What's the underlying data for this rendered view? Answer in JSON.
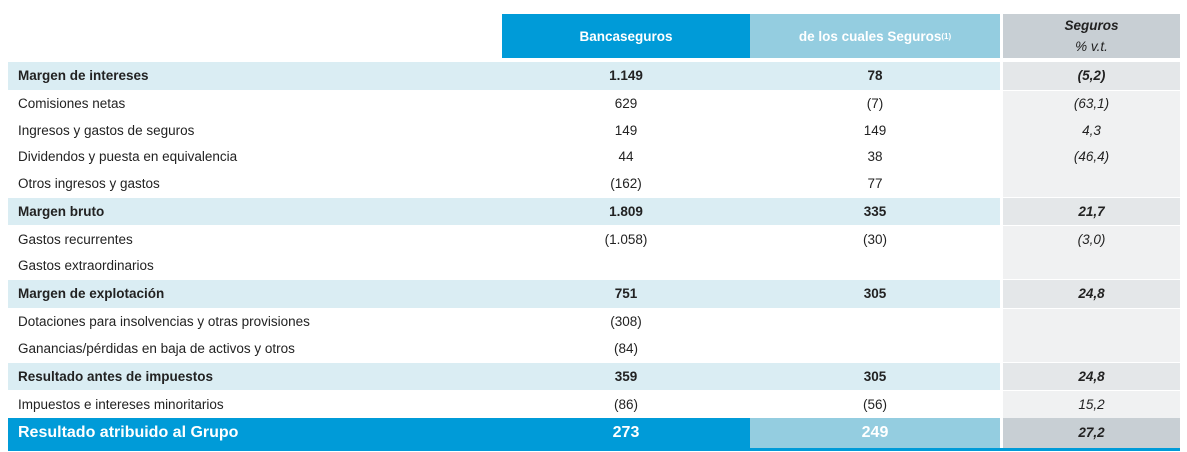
{
  "header": {
    "col1": "Bancaseguros",
    "col2": "de los cuales Seguros",
    "col2_note": "(1)",
    "col3_title": "Seguros",
    "col3_sub": "% v.t."
  },
  "rows": [
    {
      "label": "Margen de intereses",
      "v1": "1.149",
      "v2": "78",
      "v3": "(5,2)",
      "style": "bold"
    },
    {
      "label": "Comisiones netas",
      "v1": "629",
      "v2": "(7)",
      "v3": "(63,1)",
      "style": "normal"
    },
    {
      "label": "Ingresos y gastos de seguros",
      "v1": "149",
      "v2": "149",
      "v3": "4,3",
      "style": "normal"
    },
    {
      "label": "Dividendos y puesta en equivalencia",
      "v1": "44",
      "v2": "38",
      "v3": "(46,4)",
      "style": "normal"
    },
    {
      "label": "Otros ingresos y gastos",
      "v1": "(162)",
      "v2": "77",
      "v3": "",
      "style": "normal"
    },
    {
      "label": "Margen bruto",
      "v1": "1.809",
      "v2": "335",
      "v3": "21,7",
      "style": "bold"
    },
    {
      "label": "Gastos recurrentes",
      "v1": "(1.058)",
      "v2": "(30)",
      "v3": "(3,0)",
      "style": "normal"
    },
    {
      "label": "Gastos extraordinarios",
      "v1": "",
      "v2": "",
      "v3": "",
      "style": "normal"
    },
    {
      "label": "Margen de explotación",
      "v1": "751",
      "v2": "305",
      "v3": "24,8",
      "style": "bold"
    },
    {
      "label": "Dotaciones para insolvencias y otras provisiones",
      "v1": "(308)",
      "v2": "",
      "v3": "",
      "style": "normal"
    },
    {
      "label": "Ganancias/pérdidas en baja de activos y otros",
      "v1": "(84)",
      "v2": "",
      "v3": "",
      "style": "normal"
    },
    {
      "label": "Resultado antes de impuestos",
      "v1": "359",
      "v2": "305",
      "v3": "24,8",
      "style": "bold"
    },
    {
      "label": "Impuestos e intereses minoritarios",
      "v1": "(86)",
      "v2": "(56)",
      "v3": "15,2",
      "style": "normal"
    },
    {
      "label": "Resultado atribuido al Grupo",
      "v1": "273",
      "v2": "249",
      "v3": "27,2",
      "style": "final"
    }
  ],
  "colors": {
    "blue": "#009bd8",
    "light_blue": "#94cde0",
    "row_highlight": "#daedf3",
    "gray": "#c8cfd4"
  }
}
